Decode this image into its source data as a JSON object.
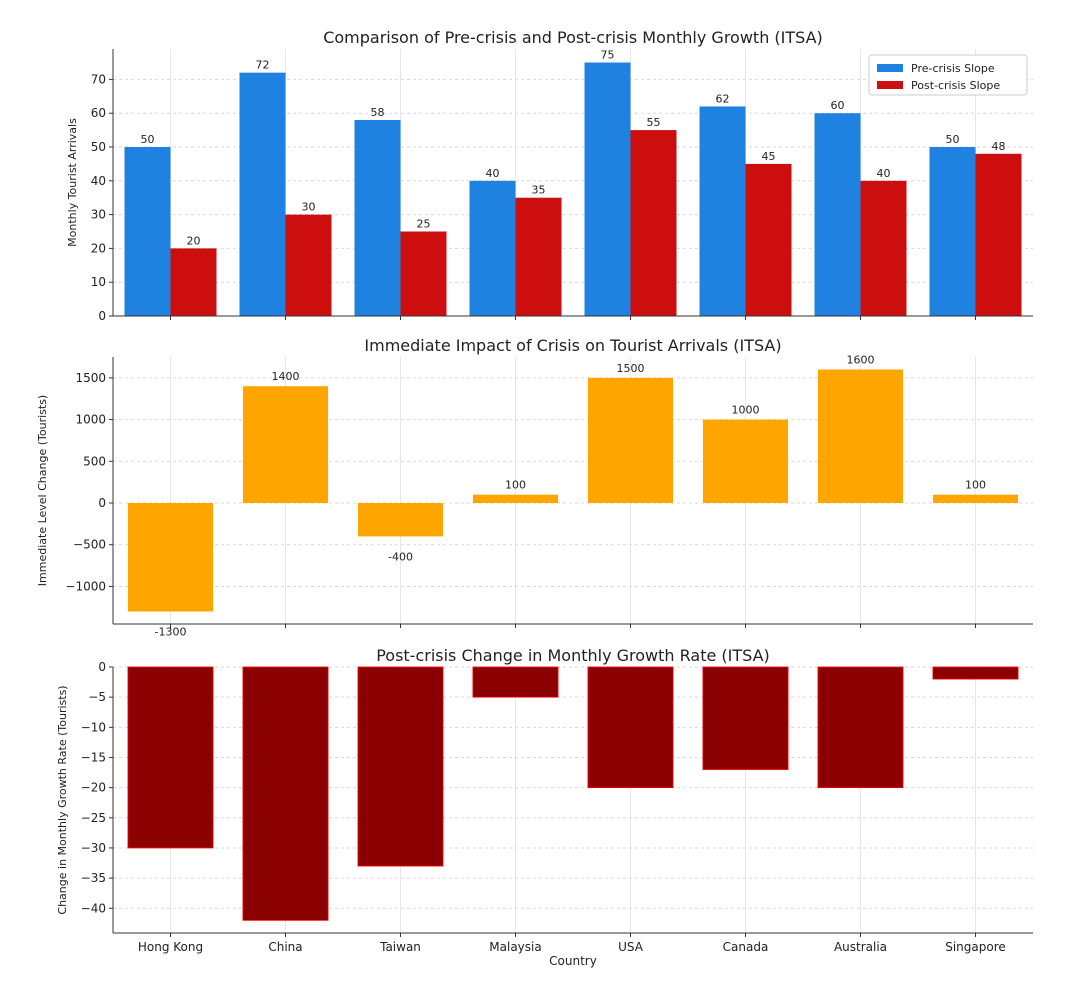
{
  "chart_data": [
    {
      "type": "bar",
      "title": "Comparison of Pre-crisis and Post-crisis Monthly Growth (ITSA)",
      "xlabel": "",
      "ylabel": "Monthly Tourist Arrivals",
      "categories": [
        "Hong Kong",
        "China",
        "Taiwan",
        "Malaysia",
        "USA",
        "Canada",
        "Australia",
        "Singapore"
      ],
      "series": [
        {
          "name": "Pre-crisis Slope",
          "values": [
            50,
            72,
            58,
            40,
            75,
            62,
            60,
            50
          ],
          "color": "#1f82e0"
        },
        {
          "name": "Post-crisis Slope",
          "values": [
            20,
            30,
            25,
            35,
            55,
            45,
            40,
            48
          ],
          "color": "#cc0e0e"
        }
      ],
      "ylim": [
        0,
        79
      ],
      "yticks": [
        0,
        10,
        20,
        30,
        40,
        50,
        60,
        70
      ],
      "grid": true,
      "legend_position": "top-right"
    },
    {
      "type": "bar",
      "title": "Immediate Impact of Crisis on Tourist Arrivals (ITSA)",
      "xlabel": "",
      "ylabel": "Immediate Level Change (Tourists)",
      "categories": [
        "Hong Kong",
        "China",
        "Taiwan",
        "Malaysia",
        "USA",
        "Canada",
        "Australia",
        "Singapore"
      ],
      "values": [
        -1300,
        1400,
        -400,
        100,
        1500,
        1000,
        1600,
        100
      ],
      "color": "#ffa500",
      "ylim": [
        -1450,
        1750
      ],
      "yticks": [
        -1000,
        -500,
        0,
        500,
        1000,
        1500
      ],
      "grid": true
    },
    {
      "type": "bar",
      "title": "Post-crisis Change in Monthly Growth Rate (ITSA)",
      "xlabel": "Country",
      "ylabel": "Change in Monthly Growth Rate (Tourists)",
      "categories": [
        "Hong Kong",
        "China",
        "Taiwan",
        "Malaysia",
        "USA",
        "Canada",
        "Australia",
        "Singapore"
      ],
      "values": [
        -30,
        -42,
        -33,
        -5,
        -20,
        -17,
        -20,
        -2
      ],
      "color": "#8b0000",
      "edge_color": "#ff0000",
      "ylim": [
        -44.1,
        0
      ],
      "yticks": [
        -40,
        -35,
        -30,
        -25,
        -20,
        -15,
        -10,
        -5,
        0
      ],
      "grid": true
    }
  ]
}
